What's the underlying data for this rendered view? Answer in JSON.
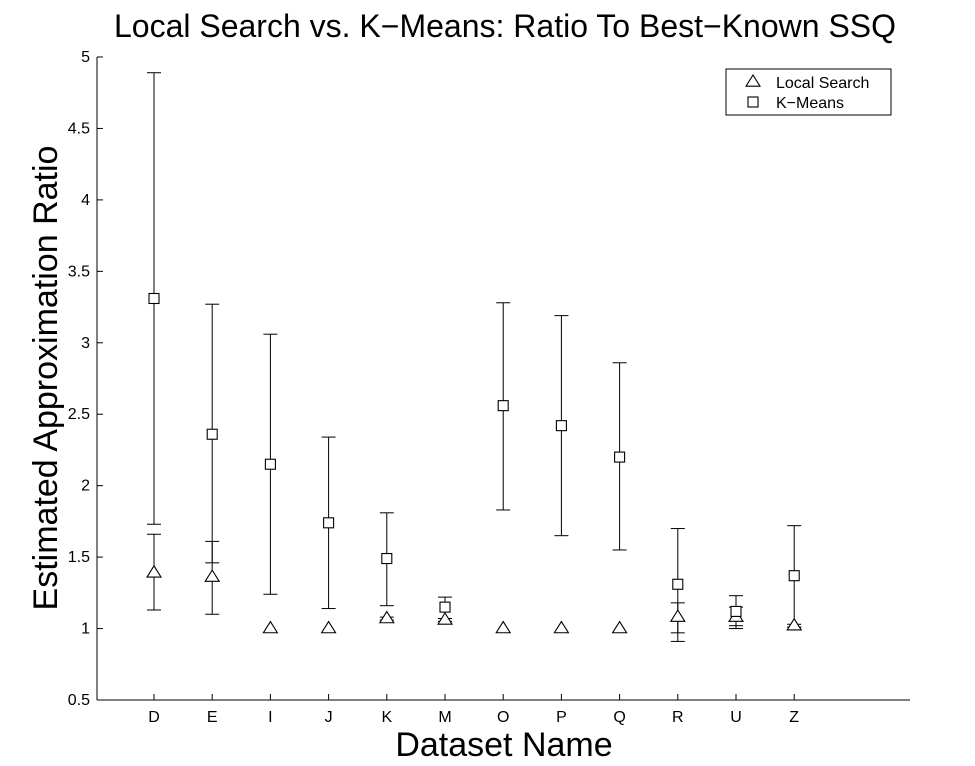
{
  "chart_data": {
    "type": "scatter",
    "title": "Local Search vs. K−Means: Ratio To Best−Known SSQ",
    "xlabel": "Dataset Name",
    "ylabel": "Estimated Approximation Ratio",
    "categories": [
      "D",
      "E",
      "I",
      "J",
      "K",
      "M",
      "O",
      "P",
      "Q",
      "R",
      "U",
      "Z"
    ],
    "ylim": [
      0.5,
      5
    ],
    "yticks": [
      "0.5",
      "1",
      "1.5",
      "2",
      "2.5",
      "3",
      "3.5",
      "4",
      "4.5",
      "5"
    ],
    "grid": false,
    "legend_position": "top-right",
    "series": [
      {
        "name": "Local Search",
        "marker": "triangle",
        "values": [
          1.39,
          1.36,
          1.0,
          1.0,
          1.07,
          1.06,
          1.0,
          1.0,
          1.0,
          1.08,
          1.08,
          1.02
        ],
        "lower": [
          1.13,
          1.1,
          1.0,
          1.0,
          1.06,
          1.05,
          1.0,
          1.0,
          1.0,
          0.97,
          1.02,
          1.01
        ],
        "upper": [
          1.66,
          1.61,
          1.0,
          1.0,
          1.08,
          1.07,
          1.0,
          1.0,
          1.0,
          1.18,
          1.15,
          1.03
        ]
      },
      {
        "name": "K−Means",
        "marker": "square",
        "values": [
          3.31,
          2.36,
          2.15,
          1.74,
          1.49,
          1.15,
          2.56,
          2.42,
          2.2,
          1.31,
          1.12,
          1.37
        ],
        "lower": [
          1.73,
          1.46,
          1.24,
          1.14,
          1.16,
          1.07,
          1.83,
          1.65,
          1.55,
          0.91,
          1.0,
          1.01
        ],
        "upper": [
          4.89,
          3.27,
          3.06,
          2.34,
          1.81,
          1.22,
          3.28,
          3.19,
          2.86,
          1.7,
          1.23,
          1.72
        ]
      }
    ]
  }
}
